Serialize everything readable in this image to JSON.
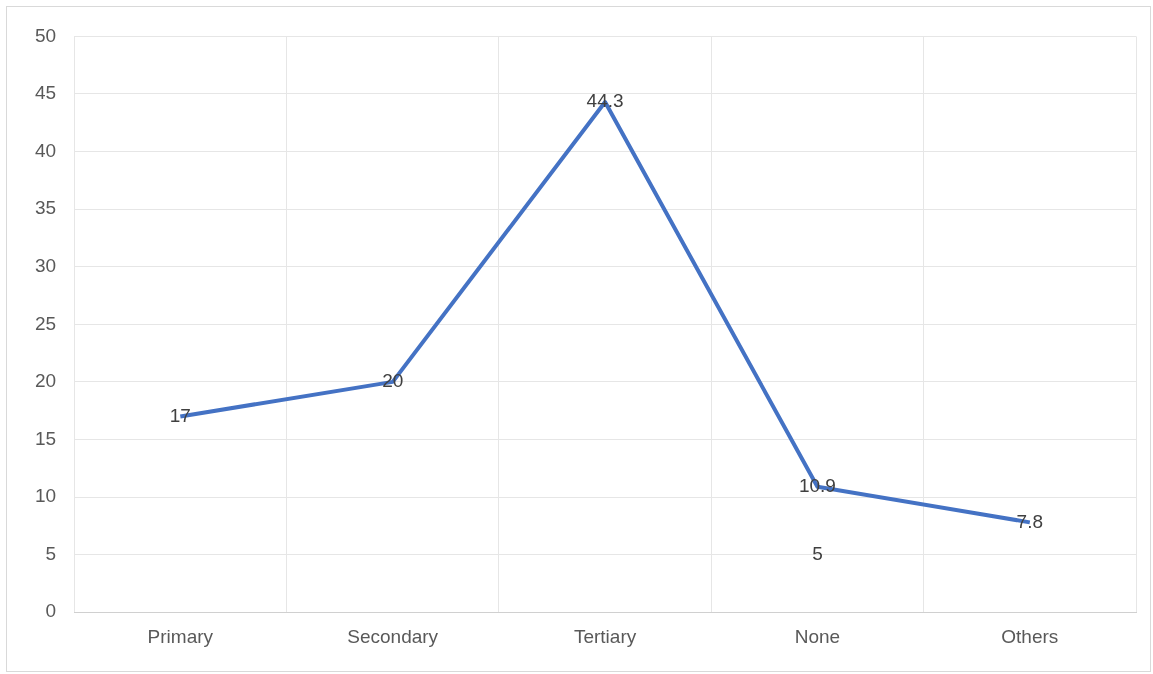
{
  "chart_data": {
    "type": "line",
    "categories": [
      "Primary",
      "Secondary",
      "Tertiary",
      "None",
      "Others"
    ],
    "series": [
      {
        "color": "#4472c4",
        "values": [
          17,
          20,
          44.3,
          10.9,
          7.8
        ]
      }
    ],
    "ylim": [
      0,
      50
    ],
    "yticks": [
      0,
      5,
      10,
      15,
      20,
      25,
      30,
      35,
      40,
      45,
      50
    ],
    "grid": true,
    "data_labels": true,
    "marker": "none",
    "annotations": [
      "5"
    ]
  }
}
